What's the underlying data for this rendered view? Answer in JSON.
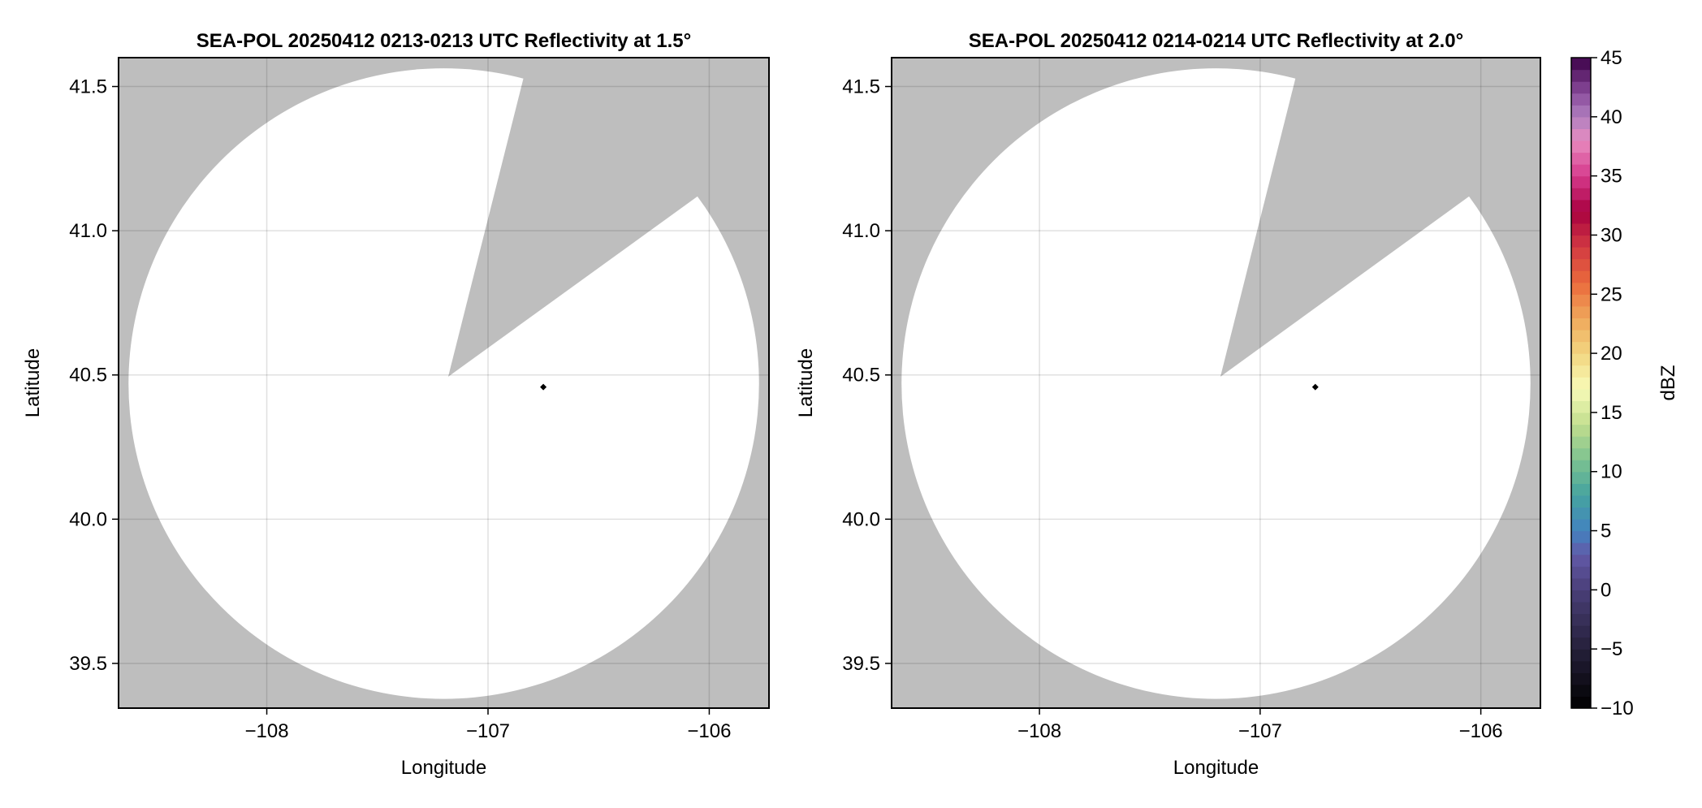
{
  "chart_data": [
    {
      "type": "heatmap",
      "title": "SEA-POL 20250412 0213-0213 UTC Reflectivity at 1.5°",
      "xlabel": "Longitude",
      "ylabel": "Latitude",
      "xlim": [
        -108.67,
        -105.73
      ],
      "ylim": [
        39.345,
        41.6
      ],
      "xticks": [
        -108,
        -107,
        -106
      ],
      "xtick_labels": [
        "−108",
        "−107",
        "−106"
      ],
      "yticks": [
        39.5,
        40.0,
        40.5,
        41.0,
        41.5
      ],
      "ytick_labels": [
        "39.5",
        "40.0",
        "40.5",
        "41.0",
        "41.5"
      ],
      "grid": true,
      "background_color": "#bebebe",
      "coverage_color": "#ffffff",
      "coverage_center": [
        -107.2,
        40.47
      ],
      "coverage_radius_deg": [
        1.425,
        1.093
      ],
      "blocked_sector": {
        "apex": [
          -107.18,
          40.494
        ],
        "edge1_end": [
          -106.84,
          41.528
        ],
        "edge2_end": [
          -106.055,
          41.118
        ]
      },
      "marker": {
        "lon": -106.75,
        "lat": 40.458,
        "color": "#000000"
      }
    },
    {
      "type": "heatmap",
      "title": "SEA-POL 20250412 0214-0214 UTC Reflectivity at 2.0°",
      "xlabel": "Longitude",
      "ylabel": "Latitude",
      "xlim": [
        -108.67,
        -105.73
      ],
      "ylim": [
        39.345,
        41.6
      ],
      "xticks": [
        -108,
        -107,
        -106
      ],
      "xtick_labels": [
        "−108",
        "−107",
        "−106"
      ],
      "yticks": [
        39.5,
        40.0,
        40.5,
        41.0,
        41.5
      ],
      "ytick_labels": [
        "39.5",
        "40.0",
        "40.5",
        "41.0",
        "41.5"
      ],
      "grid": true,
      "background_color": "#bebebe",
      "coverage_color": "#ffffff",
      "coverage_center": [
        -107.2,
        40.47
      ],
      "coverage_radius_deg": [
        1.425,
        1.093
      ],
      "blocked_sector": {
        "apex": [
          -107.18,
          40.494
        ],
        "edge1_end": [
          -106.84,
          41.528
        ],
        "edge2_end": [
          -106.055,
          41.118
        ]
      },
      "marker": {
        "lon": -106.75,
        "lat": 40.458,
        "color": "#000000"
      }
    }
  ],
  "colorbar": {
    "label": "dBZ",
    "range": [
      -10,
      45
    ],
    "ticks": [
      -10,
      -5,
      0,
      5,
      10,
      15,
      20,
      25,
      30,
      35,
      40,
      45
    ],
    "tick_labels": [
      "−10",
      "−5",
      "0",
      "5",
      "10",
      "15",
      "20",
      "25",
      "30",
      "35",
      "40",
      "45"
    ],
    "color_stops": [
      [
        -10,
        "#000000"
      ],
      [
        -5,
        "#25203a"
      ],
      [
        0,
        "#4a3f78"
      ],
      [
        3,
        "#6259a8"
      ],
      [
        5,
        "#4283c0"
      ],
      [
        8,
        "#45a3a0"
      ],
      [
        11,
        "#7cc290"
      ],
      [
        14,
        "#c2de8e"
      ],
      [
        17,
        "#f8fbb8"
      ],
      [
        20,
        "#f2d680"
      ],
      [
        23,
        "#efa75b"
      ],
      [
        26,
        "#ea6a3c"
      ],
      [
        29,
        "#d23a42"
      ],
      [
        32,
        "#a8003f"
      ],
      [
        35,
        "#d63a8c"
      ],
      [
        38,
        "#e88cc0"
      ],
      [
        40,
        "#b080c0"
      ],
      [
        42,
        "#8a4c9c"
      ],
      [
        45,
        "#3c0048"
      ]
    ]
  }
}
